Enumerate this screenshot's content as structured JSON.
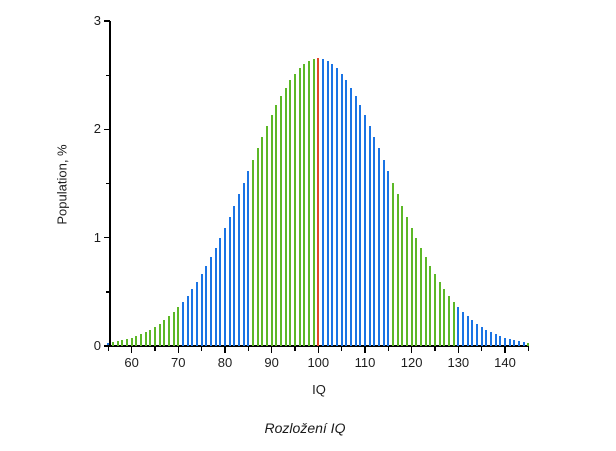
{
  "chart_data": {
    "type": "bar",
    "title": "Rozložení IQ",
    "xlabel": "IQ",
    "ylabel": "Population, %",
    "x_axis": {
      "min": 55,
      "max": 145,
      "major_ticks": [
        60,
        70,
        80,
        90,
        100,
        110,
        120,
        130,
        140
      ],
      "minor_ticks": [
        55,
        65,
        75,
        85,
        95,
        105,
        115,
        125,
        135,
        145
      ]
    },
    "y_axis": {
      "min": 0,
      "max": 3,
      "major_ticks": [
        0,
        1,
        2,
        3
      ],
      "minor_ticks": [
        0.5,
        1.5,
        2.5
      ]
    },
    "grid": "off",
    "legend": "none",
    "iq": [
      55,
      56,
      57,
      58,
      59,
      60,
      61,
      62,
      63,
      64,
      65,
      66,
      67,
      68,
      69,
      70,
      71,
      72,
      73,
      74,
      75,
      76,
      77,
      78,
      79,
      80,
      81,
      82,
      83,
      84,
      85,
      86,
      87,
      88,
      89,
      90,
      91,
      92,
      93,
      94,
      95,
      96,
      97,
      98,
      99,
      100,
      101,
      102,
      103,
      104,
      105,
      106,
      107,
      108,
      109,
      110,
      111,
      112,
      113,
      114,
      115,
      116,
      117,
      118,
      119,
      120,
      121,
      122,
      123,
      124,
      125,
      126,
      127,
      128,
      129,
      130,
      131,
      132,
      133,
      134,
      135,
      136,
      137,
      138,
      139,
      140,
      141,
      142,
      143,
      144,
      145
    ],
    "values": [
      0.03,
      0.036,
      0.044,
      0.053,
      0.063,
      0.076,
      0.091,
      0.107,
      0.127,
      0.149,
      0.175,
      0.204,
      0.236,
      0.273,
      0.314,
      0.36,
      0.41,
      0.466,
      0.526,
      0.592,
      0.663,
      0.739,
      0.821,
      0.907,
      0.998,
      1.093,
      1.192,
      1.295,
      1.399,
      1.506,
      1.613,
      1.721,
      1.827,
      1.931,
      2.033,
      2.13,
      2.222,
      2.307,
      2.385,
      2.455,
      2.516,
      2.567,
      2.607,
      2.636,
      2.654,
      2.66,
      2.654,
      2.636,
      2.607,
      2.567,
      2.516,
      2.455,
      2.385,
      2.307,
      2.222,
      2.13,
      2.033,
      1.931,
      1.827,
      1.721,
      1.613,
      1.506,
      1.399,
      1.295,
      1.192,
      1.093,
      0.998,
      0.907,
      0.821,
      0.739,
      0.663,
      0.592,
      0.526,
      0.466,
      0.41,
      0.36,
      0.314,
      0.273,
      0.236,
      0.204,
      0.175,
      0.149,
      0.127,
      0.107,
      0.091,
      0.076,
      0.063,
      0.053,
      0.044,
      0.036,
      0.03
    ],
    "palette": {
      "blue": "#1b74e4",
      "green": "#5cb827",
      "red": "#e2472a"
    },
    "bands": [
      {
        "from": 55,
        "to": 55,
        "color": "blue"
      },
      {
        "from": 56,
        "to": 70,
        "color": "green"
      },
      {
        "from": 71,
        "to": 85,
        "color": "blue"
      },
      {
        "from": 86,
        "to": 99,
        "color": "green"
      },
      {
        "from": 100,
        "to": 100,
        "color": "red"
      },
      {
        "from": 101,
        "to": 115,
        "color": "blue"
      },
      {
        "from": 116,
        "to": 129,
        "color": "green"
      },
      {
        "from": 130,
        "to": 144,
        "color": "blue"
      },
      {
        "from": 145,
        "to": 145,
        "color": "green"
      }
    ]
  }
}
